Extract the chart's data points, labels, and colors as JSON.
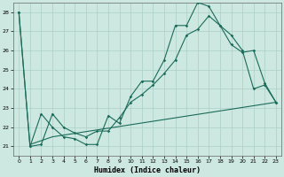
{
  "xlabel": "Humidex (Indice chaleur)",
  "xlim": [
    -0.5,
    23.5
  ],
  "ylim": [
    20.5,
    28.5
  ],
  "xticks": [
    0,
    1,
    2,
    3,
    4,
    5,
    6,
    7,
    8,
    9,
    10,
    11,
    12,
    13,
    14,
    15,
    16,
    17,
    18,
    19,
    20,
    21,
    22,
    23
  ],
  "yticks": [
    21,
    22,
    23,
    24,
    25,
    26,
    27,
    28
  ],
  "background_color": "#cce8e0",
  "grid_color": "#aacfc8",
  "line_color": "#1a6b5a",
  "line1_x": [
    0,
    1,
    2,
    3,
    4,
    5,
    6,
    7,
    8,
    9,
    10,
    11,
    12,
    13,
    14,
    15,
    16,
    17,
    18,
    19,
    20,
    21,
    22,
    23
  ],
  "line1_y": [
    28.0,
    21.0,
    22.7,
    22.0,
    21.5,
    21.4,
    21.1,
    21.1,
    22.6,
    22.2,
    23.6,
    24.4,
    24.4,
    25.5,
    27.3,
    27.3,
    28.5,
    28.3,
    27.3,
    26.8,
    26.0,
    24.0,
    24.2,
    23.3
  ],
  "line2_x": [
    0,
    1,
    2,
    3,
    4,
    5,
    6,
    7,
    8,
    9,
    10,
    11,
    12,
    13,
    14,
    15,
    16,
    17,
    18,
    19,
    20,
    21,
    22,
    23
  ],
  "line2_y": [
    28.0,
    21.0,
    21.1,
    22.7,
    22.0,
    21.7,
    21.5,
    21.8,
    21.8,
    22.5,
    23.3,
    23.7,
    24.2,
    24.8,
    25.5,
    26.8,
    27.1,
    27.8,
    27.3,
    26.3,
    25.9,
    26.0,
    24.3,
    23.3
  ],
  "line3_x": [
    1,
    3,
    23
  ],
  "line3_y": [
    21.1,
    21.5,
    23.3
  ]
}
